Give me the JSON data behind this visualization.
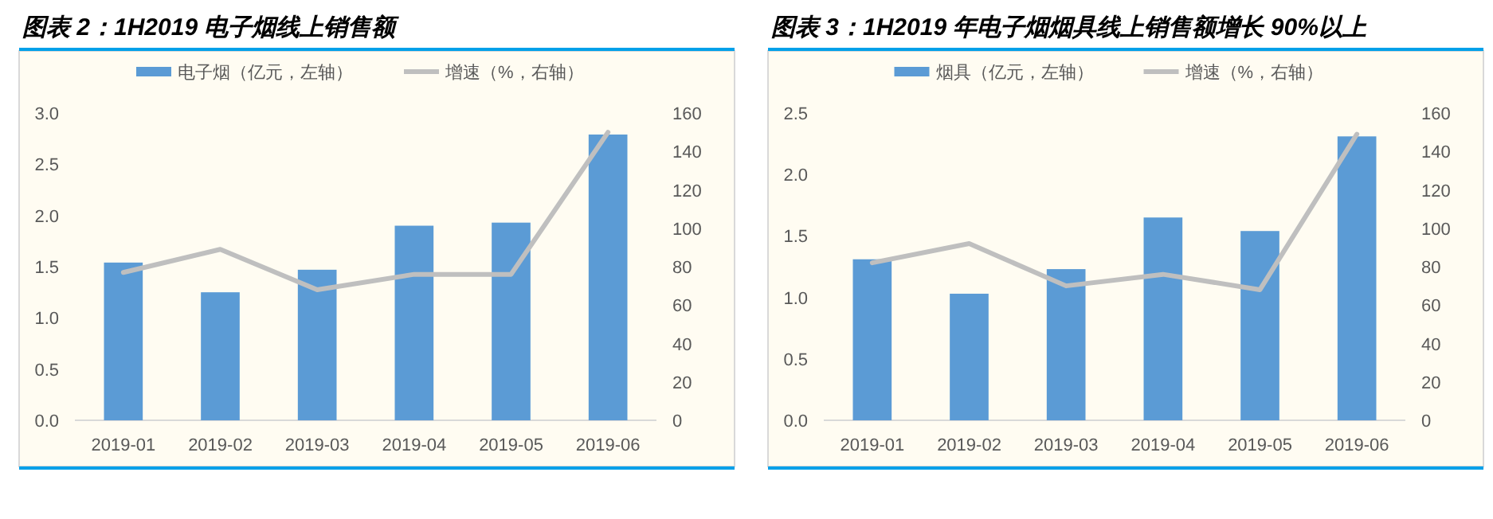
{
  "chart_data": [
    {
      "type": "bar",
      "title": "图表 2：1H2019 电子烟线上销售额",
      "categories": [
        "2019-01",
        "2019-02",
        "2019-03",
        "2019-04",
        "2019-05",
        "2019-06"
      ],
      "legend": "top",
      "grid": false,
      "series": [
        {
          "name": "电子烟（亿元，左轴）",
          "color": "#5b9bd5",
          "values": [
            1.54,
            1.25,
            1.47,
            1.9,
            1.93,
            2.79
          ]
        },
        {
          "name": "增速（%，右轴）",
          "type": "line",
          "axis": "y2",
          "color": "#bfbfbf",
          "values": [
            77,
            89,
            68,
            76,
            76,
            150
          ]
        }
      ],
      "ylim": [
        0,
        3
      ],
      "yticks": [
        {
          "value": 0,
          "label": "0.0"
        },
        {
          "value": 0.5,
          "label": "0.5"
        },
        {
          "value": 1,
          "label": "1.0"
        },
        {
          "value": 1.5,
          "label": "1.5"
        },
        {
          "value": 2,
          "label": "2.0"
        },
        {
          "value": 2.5,
          "label": "2.5"
        },
        {
          "value": 3,
          "label": "3.0"
        }
      ],
      "y2lim": [
        0,
        160
      ],
      "y2ticks": [
        0,
        20,
        40,
        60,
        80,
        100,
        120,
        140,
        160
      ]
    },
    {
      "type": "bar",
      "title": "图表 3：1H2019 年电子烟烟具线上销售额增长 90%以上",
      "categories": [
        "2019-01",
        "2019-02",
        "2019-03",
        "2019-04",
        "2019-05",
        "2019-06"
      ],
      "legend": "top",
      "grid": false,
      "series": [
        {
          "name": "烟具（亿元，左轴）",
          "color": "#5b9bd5",
          "values": [
            1.31,
            1.03,
            1.23,
            1.65,
            1.54,
            2.31
          ]
        },
        {
          "name": "增速（%，右轴）",
          "type": "line",
          "axis": "y2",
          "color": "#bfbfbf",
          "values": [
            82,
            92,
            70,
            76,
            68,
            149
          ]
        }
      ],
      "ylim": [
        0,
        2.5
      ],
      "yticks": [
        {
          "value": 0,
          "label": "0.0"
        },
        {
          "value": 0.5,
          "label": "0.5"
        },
        {
          "value": 1,
          "label": "1.0"
        },
        {
          "value": 1.5,
          "label": "1.5"
        },
        {
          "value": 2,
          "label": "2.0"
        },
        {
          "value": 2.5,
          "label": "2.5"
        }
      ],
      "y2lim": [
        0,
        160
      ],
      "y2ticks": [
        0,
        20,
        40,
        60,
        80,
        100,
        120,
        140,
        160
      ]
    }
  ]
}
